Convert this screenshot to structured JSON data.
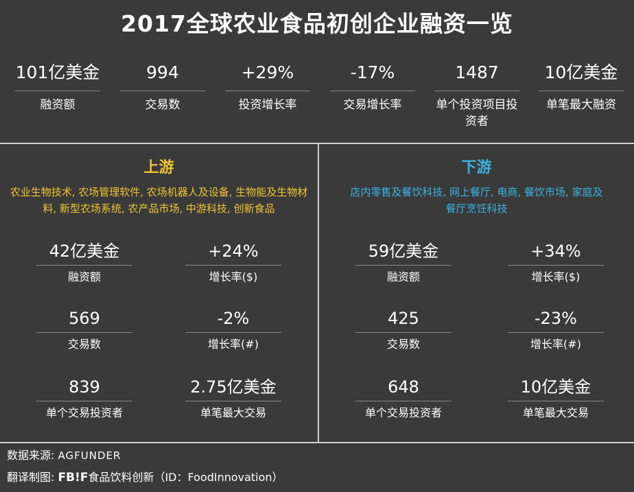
{
  "title": "2017全球农业食品初创企业融资一览",
  "summary": [
    {
      "value": "101亿美金",
      "label": "融资额"
    },
    {
      "value": "994",
      "label": "交易数"
    },
    {
      "value": "+29%",
      "label": "投资增长率"
    },
    {
      "value": "-17%",
      "label": "交易增长率"
    },
    {
      "value": "1487",
      "label": "单个投资项目投资者"
    },
    {
      "value": "10亿美金",
      "label": "单笔最大融资"
    }
  ],
  "upstream": {
    "title": "上游",
    "description": "农业生物技术, 农场管理软件, 农场机器人及设备, 生物能及生物材料, 新型农场系统, 农产品市场, 中游科技, 创新食品",
    "accent_color": "#f2c531",
    "stats": [
      {
        "value": "42亿美金",
        "label": "融资额"
      },
      {
        "value": "+24%",
        "label": "增长率($)"
      },
      {
        "value": "569",
        "label": "交易数"
      },
      {
        "value": "-2%",
        "label": "增长率(#)"
      },
      {
        "value": "839",
        "label": "单个交易投资者"
      },
      {
        "value": "2.75亿美金",
        "label": "单笔最大交易"
      }
    ]
  },
  "downstream": {
    "title": "下游",
    "description": "店内零售及餐饮科技, 网上餐厅, 电商, 餐饮市场, 家庭及餐厅烹饪科技",
    "accent_color": "#3ab3e0",
    "stats": [
      {
        "value": "59亿美金",
        "label": "融资额"
      },
      {
        "value": "+34%",
        "label": "增长率($)"
      },
      {
        "value": "425",
        "label": "交易数"
      },
      {
        "value": "-23%",
        "label": "增长率(#)"
      },
      {
        "value": "648",
        "label": "单个交易投资者"
      },
      {
        "value": "10亿美金",
        "label": "单笔最大交易"
      }
    ]
  },
  "footer": {
    "source_label": "数据来源:",
    "source_logo": "AGFUNDER",
    "translator_label": "翻译制图:",
    "translator_logo": "FB!F",
    "translator_name": "食品饮料创新（ID：FoodInnovation）"
  }
}
